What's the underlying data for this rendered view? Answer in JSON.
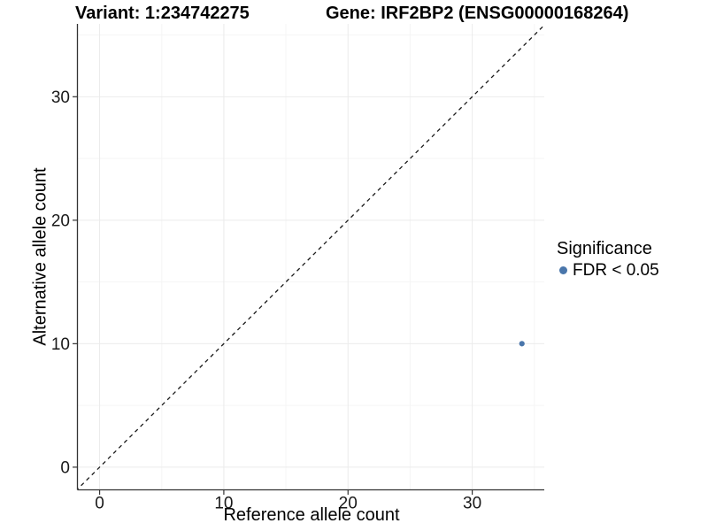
{
  "titles": {
    "variant": "Variant: 1:234742275",
    "gene": "Gene: IRF2BP2 (ENSG00000168264)"
  },
  "legend": {
    "title": "Significance",
    "items": [
      {
        "label": "FDR < 0.05",
        "color": "#4a76ab"
      }
    ]
  },
  "chart_data": {
    "type": "scatter",
    "title": "Variant: 1:234742275  /  Gene: IRF2BP2 (ENSG00000168264)",
    "xlabel": "Reference allele count",
    "ylabel": "Alternative allele count",
    "series": [
      {
        "name": "FDR < 0.05",
        "points": [
          {
            "x": 34,
            "y": 10
          }
        ],
        "color": "#4a76ab"
      }
    ],
    "reference_line": {
      "type": "identity",
      "slope": 1,
      "intercept": 0,
      "style": "dashed",
      "color": "#1a1a1a"
    },
    "x": {
      "range": [
        -1.75,
        35.8
      ],
      "major_ticks": [
        0,
        10,
        20,
        30
      ],
      "minor_gridlines": [
        5,
        15,
        25,
        35
      ]
    },
    "y": {
      "range": [
        -1.8,
        35.9
      ],
      "major_ticks": [
        0,
        10,
        20,
        30
      ],
      "minor_gridlines": [
        5,
        15,
        25,
        35
      ]
    },
    "grid": {
      "major_color": "#ebebeb",
      "minor_color": "#f5f5f5",
      "background": "#ffffff"
    },
    "axis_color": "#333333",
    "legend_position": "right",
    "point_radius": 3.1
  }
}
